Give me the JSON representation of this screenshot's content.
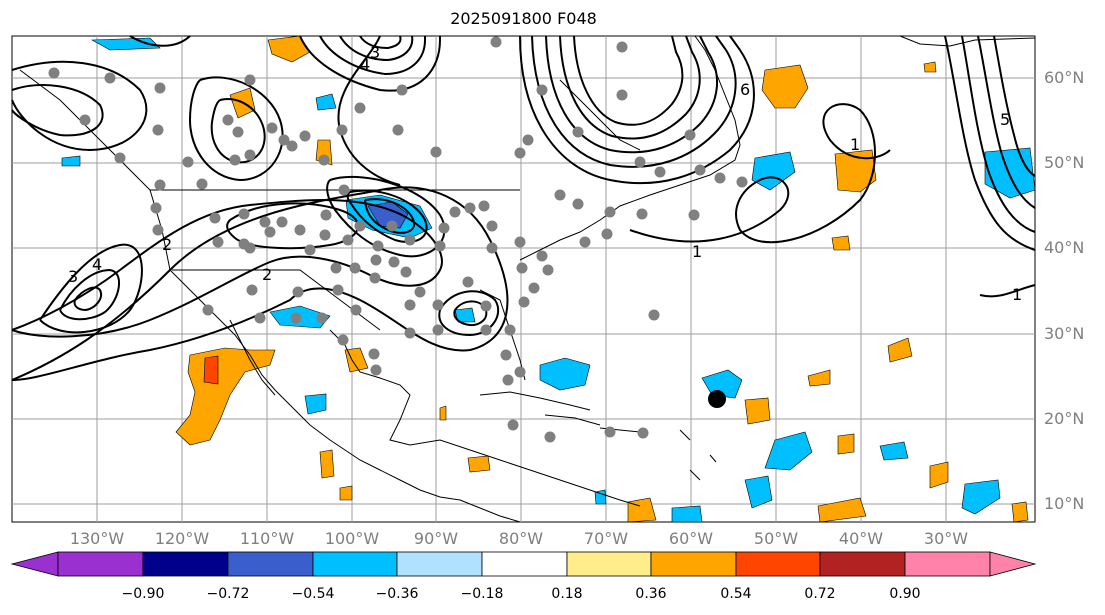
{
  "title": "2025091800 F048",
  "lat_labels": [
    "60°N",
    "50°N",
    "40°N",
    "30°N",
    "20°N",
    "10°N"
  ],
  "lon_labels": [
    "130°W",
    "120°W",
    "110°W",
    "100°W",
    "90°W",
    "80°W",
    "70°W",
    "60°W",
    "50°W",
    "40°W",
    "30°W"
  ],
  "colorbar": {
    "ticks": [
      "−0.90",
      "−0.72",
      "−0.54",
      "−0.36",
      "−0.18",
      "0.18",
      "0.36",
      "0.54",
      "0.72",
      "0.90"
    ],
    "colors": [
      "#9b30d0",
      "#00008b",
      "#3a5fcd",
      "#00bfff",
      "#b0e2ff",
      "#ffffff",
      "#ffec8b",
      "#ffa500",
      "#ff4500",
      "#b22222",
      "#ff82ab"
    ]
  },
  "contour_labels": [
    "1",
    "1",
    "1",
    "2",
    "2",
    "3",
    "3",
    "4",
    "4",
    "5",
    "6"
  ],
  "colors": {
    "grid": "#9e9e9e",
    "coast": "#000000",
    "station": "#808080",
    "negative_fill": "#00bfff",
    "positive_fill": "#ffa500"
  }
}
